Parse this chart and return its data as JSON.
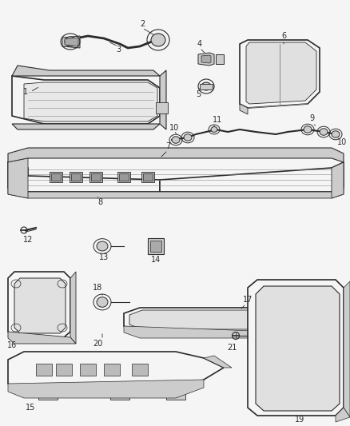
{
  "bg_color": "#f5f5f5",
  "line_color": "#2a2a2a",
  "fig_width": 4.38,
  "fig_height": 5.33,
  "dpi": 100
}
